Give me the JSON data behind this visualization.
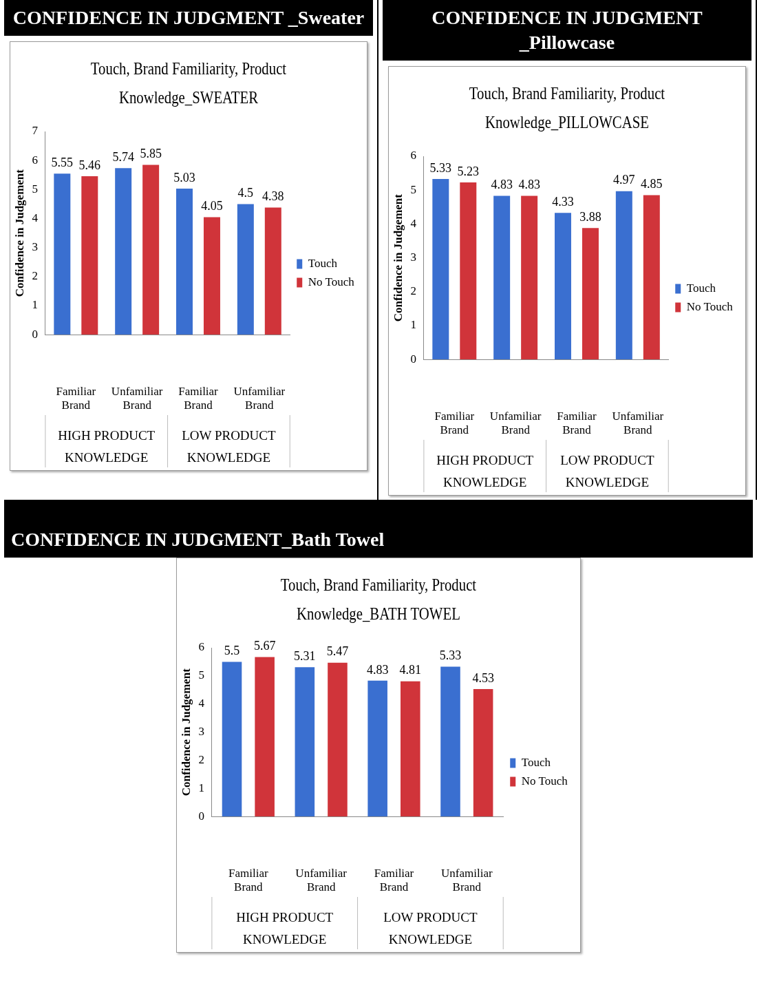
{
  "chart_data": [
    {
      "type": "bar",
      "title": "CONFIDENCE IN JUDGMENT _Sweater",
      "subtitle": "Touch, Brand Familiarity, Product Knowledge_SWEATER",
      "ylabel": "Confidence in Judgement",
      "categories": [
        "Familiar Brand",
        "Unfamiliar Brand",
        "Familiar Brand",
        "Unfamiliar Brand"
      ],
      "annotations": [
        "HIGH PRODUCT KNOWLEDGE",
        "LOW PRODUCT KNOWLEDGE"
      ],
      "series": [
        {
          "name": "Touch",
          "color": "#3a6fd0",
          "values": [
            5.55,
            5.74,
            5.03,
            4.5
          ]
        },
        {
          "name": "No Touch",
          "color": "#d0343a",
          "values": [
            5.46,
            5.85,
            4.05,
            4.38
          ]
        }
      ],
      "ylim": [
        0,
        7
      ],
      "yticks": [
        0,
        1,
        2,
        3,
        4,
        5,
        6,
        7
      ],
      "data_labels": true,
      "legend": "right"
    },
    {
      "type": "bar",
      "title": "CONFIDENCE IN JUDGMENT _Pillowcase",
      "subtitle": "Touch, Brand Familiarity, Product Knowledge_PILLOWCASE",
      "ylabel": "Confidence in Judgement",
      "categories": [
        "Familiar Brand",
        "Unfamiliar Brand",
        "Familiar Brand",
        "Unfamiliar Brand"
      ],
      "annotations": [
        "HIGH PRODUCT KNOWLEDGE",
        "LOW PRODUCT KNOWLEDGE"
      ],
      "series": [
        {
          "name": "Touch",
          "color": "#3a6fd0",
          "values": [
            5.33,
            4.83,
            4.33,
            4.97
          ]
        },
        {
          "name": "No Touch",
          "color": "#d0343a",
          "values": [
            5.23,
            4.83,
            3.88,
            4.85
          ]
        }
      ],
      "ylim": [
        0,
        6
      ],
      "yticks": [
        0,
        1,
        2,
        3,
        4,
        5,
        6
      ],
      "data_labels": true,
      "legend": "right"
    },
    {
      "type": "bar",
      "title": "CONFIDENCE IN JUDGMENT_Bath Towel",
      "subtitle": "Touch, Brand Familiarity, Product Knowledge_BATH TOWEL",
      "ylabel": "Confidence in Judgement",
      "categories": [
        "Familiar Brand",
        "Unfamiliar Brand",
        "Familiar Brand",
        "Unfamiliar Brand"
      ],
      "annotations": [
        "HIGH PRODUCT KNOWLEDGE",
        "LOW PRODUCT KNOWLEDGE"
      ],
      "series": [
        {
          "name": "Touch",
          "color": "#3a6fd0",
          "values": [
            5.5,
            5.31,
            4.83,
            5.33
          ]
        },
        {
          "name": "No Touch",
          "color": "#d0343a",
          "values": [
            5.67,
            5.47,
            4.81,
            4.53
          ]
        }
      ],
      "ylim": [
        0,
        6
      ],
      "yticks": [
        0,
        1,
        2,
        3,
        4,
        5,
        6
      ],
      "data_labels": true,
      "legend": "right"
    }
  ]
}
